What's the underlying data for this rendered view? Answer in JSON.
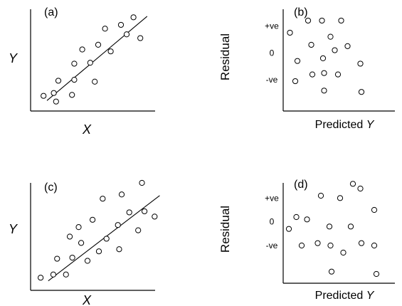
{
  "colors": {
    "ink": "#000000",
    "background": "#ffffff"
  },
  "chart_data": [
    {
      "id": "a",
      "type": "scatter",
      "panel_label": "(a)",
      "xlabel": "X",
      "ylabel": "Y",
      "xlim": [
        0,
        10
      ],
      "ylim": [
        0,
        10
      ],
      "points": [
        {
          "x": 0.7,
          "y": 1.0
        },
        {
          "x": 1.6,
          "y": 1.3
        },
        {
          "x": 1.8,
          "y": 0.4
        },
        {
          "x": 2.0,
          "y": 2.6
        },
        {
          "x": 3.2,
          "y": 1.1
        },
        {
          "x": 3.4,
          "y": 2.7
        },
        {
          "x": 3.4,
          "y": 4.4
        },
        {
          "x": 4.1,
          "y": 5.9
        },
        {
          "x": 4.8,
          "y": 4.5
        },
        {
          "x": 5.2,
          "y": 2.5
        },
        {
          "x": 5.5,
          "y": 6.4
        },
        {
          "x": 6.1,
          "y": 8.1
        },
        {
          "x": 6.6,
          "y": 5.7
        },
        {
          "x": 7.5,
          "y": 8.5
        },
        {
          "x": 8.0,
          "y": 7.5
        },
        {
          "x": 8.6,
          "y": 9.3
        },
        {
          "x": 9.2,
          "y": 7.1
        }
      ],
      "fit_line": {
        "x": [
          1.0,
          9.8
        ],
        "y": [
          0.5,
          9.4
        ]
      }
    },
    {
      "id": "b",
      "type": "scatter",
      "panel_label": "(b)",
      "xlabel": "Predicted",
      "xlabel_symbol": "Y",
      "ylabel": "Residual",
      "yticks": [
        {
          "label": "+ve",
          "value": 1
        },
        {
          "label": "0",
          "value": 0
        },
        {
          "label": "-ve",
          "value": -1
        }
      ],
      "xlim": [
        0,
        10
      ],
      "ylim": [
        -2,
        1.7
      ],
      "points": [
        {
          "x": 0.5,
          "y": 0.75
        },
        {
          "x": 1.0,
          "y": -1.05
        },
        {
          "x": 1.2,
          "y": -0.3
        },
        {
          "x": 2.2,
          "y": 1.2
        },
        {
          "x": 2.5,
          "y": 0.3
        },
        {
          "x": 2.6,
          "y": -0.8
        },
        {
          "x": 3.5,
          "y": 1.2
        },
        {
          "x": 3.6,
          "y": -0.2
        },
        {
          "x": 3.7,
          "y": -1.4
        },
        {
          "x": 3.7,
          "y": -0.75
        },
        {
          "x": 4.3,
          "y": 0.6
        },
        {
          "x": 4.7,
          "y": 0.1
        },
        {
          "x": 5.0,
          "y": -0.8
        },
        {
          "x": 5.3,
          "y": 1.2
        },
        {
          "x": 5.9,
          "y": 0.25
        },
        {
          "x": 7.1,
          "y": -0.4
        },
        {
          "x": 7.2,
          "y": -1.45
        }
      ]
    },
    {
      "id": "c",
      "type": "scatter",
      "panel_label": "(c)",
      "xlabel": "X",
      "ylabel": "Y",
      "xlim": [
        0,
        10
      ],
      "ylim": [
        0,
        10
      ],
      "points": [
        {
          "x": 0.4,
          "y": 1.0
        },
        {
          "x": 1.4,
          "y": 1.3
        },
        {
          "x": 1.7,
          "y": 2.8
        },
        {
          "x": 2.4,
          "y": 1.3
        },
        {
          "x": 2.7,
          "y": 4.9
        },
        {
          "x": 2.9,
          "y": 2.9
        },
        {
          "x": 3.4,
          "y": 5.8
        },
        {
          "x": 3.6,
          "y": 4.3
        },
        {
          "x": 4.1,
          "y": 2.6
        },
        {
          "x": 4.5,
          "y": 6.5
        },
        {
          "x": 5.0,
          "y": 3.5
        },
        {
          "x": 5.3,
          "y": 8.5
        },
        {
          "x": 5.6,
          "y": 4.7
        },
        {
          "x": 6.5,
          "y": 6.0
        },
        {
          "x": 6.6,
          "y": 3.7
        },
        {
          "x": 6.8,
          "y": 8.9
        },
        {
          "x": 7.4,
          "y": 7.2
        },
        {
          "x": 8.1,
          "y": 5.5
        },
        {
          "x": 8.4,
          "y": 10.0
        },
        {
          "x": 8.6,
          "y": 7.3
        },
        {
          "x": 9.4,
          "y": 6.8
        }
      ],
      "fit_line": {
        "x": [
          1.0,
          9.8
        ],
        "y": [
          0.7,
          8.8
        ]
      }
    },
    {
      "id": "d",
      "type": "scatter",
      "panel_label": "(d)",
      "xlabel": "Predicted",
      "xlabel_symbol": "Y",
      "ylabel": "Residual",
      "yticks": [
        {
          "label": "+ve",
          "value": 1
        },
        {
          "label": "0",
          "value": 0
        },
        {
          "label": "-ve",
          "value": -1
        }
      ],
      "xlim": [
        0,
        10
      ],
      "ylim": [
        -2.8,
        1.7
      ],
      "points": [
        {
          "x": 0.4,
          "y": -0.3
        },
        {
          "x": 1.1,
          "y": 0.2
        },
        {
          "x": 1.6,
          "y": -1.0
        },
        {
          "x": 2.1,
          "y": 0.1
        },
        {
          "x": 3.1,
          "y": -0.9
        },
        {
          "x": 3.4,
          "y": 1.1
        },
        {
          "x": 4.2,
          "y": -0.2
        },
        {
          "x": 4.3,
          "y": -1.0
        },
        {
          "x": 4.4,
          "y": -2.1
        },
        {
          "x": 5.2,
          "y": 1.0
        },
        {
          "x": 5.5,
          "y": -1.3
        },
        {
          "x": 6.2,
          "y": -0.2
        },
        {
          "x": 6.4,
          "y": 1.6
        },
        {
          "x": 7.1,
          "y": 1.4
        },
        {
          "x": 7.2,
          "y": -0.9
        },
        {
          "x": 8.4,
          "y": -1.0
        },
        {
          "x": 8.4,
          "y": 0.5
        },
        {
          "x": 8.6,
          "y": -2.2
        }
      ]
    }
  ]
}
